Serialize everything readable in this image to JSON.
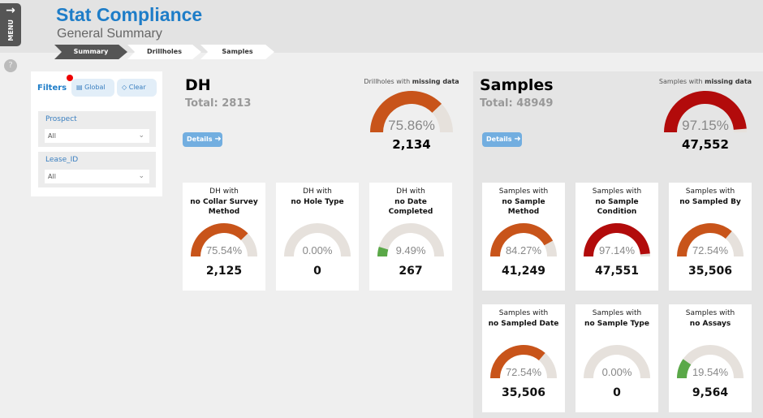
{
  "header": {
    "title": "Stat Compliance",
    "subtitle": "General Summary",
    "menu_label": "MENU",
    "menu_icon": "arrow-right-icon"
  },
  "breadcrumbs": [
    {
      "label": "Summary",
      "active": true
    },
    {
      "label": "Drillholes",
      "active": false
    },
    {
      "label": "Samples",
      "active": false
    }
  ],
  "help_icon": "question-circle-icon",
  "filters": {
    "title": "Filters",
    "global_label": "Global",
    "clear_label": "Clear",
    "fields": [
      {
        "label": "Prospect",
        "value": "All"
      },
      {
        "label": "Lease_ID",
        "value": "All"
      }
    ]
  },
  "colors": {
    "accent": "#1e7dc8",
    "orange": "#c8541a",
    "red": "#b20b0b",
    "green": "#5aa848",
    "track": "#e6e1dc"
  },
  "dh": {
    "title": "DH",
    "total": "Total: 2813",
    "details_label": "Details",
    "summary": {
      "label_pre": "Drillholes with ",
      "label_bold": "missing data",
      "pct": 75.86,
      "pct_text": "75.86%",
      "value": "2,134",
      "color": "#c8541a"
    },
    "cards": [
      {
        "t1": "DH with",
        "t2": "no Collar Survey Method",
        "pct": 75.54,
        "pct_text": "75.54%",
        "value": "2,125",
        "color": "#c8541a"
      },
      {
        "t1": "DH with",
        "t2": "no Hole Type",
        "pct": 0,
        "pct_text": "0.00%",
        "value": "0",
        "color": "#5aa848"
      },
      {
        "t1": "DH with",
        "t2": "no Date Completed",
        "pct": 9.49,
        "pct_text": "9.49%",
        "value": "267",
        "color": "#5aa848"
      }
    ]
  },
  "samples": {
    "title": "Samples",
    "total": "Total: 48949",
    "details_label": "Details",
    "summary": {
      "label_pre": "Samples with ",
      "label_bold": "missing data",
      "pct": 97.15,
      "pct_text": "97.15%",
      "value": "47,552",
      "color": "#b20b0b"
    },
    "cards": [
      {
        "t1": "Samples with",
        "t2": "no Sample Method",
        "pct": 84.27,
        "pct_text": "84.27%",
        "value": "41,249",
        "color": "#c8541a"
      },
      {
        "t1": "Samples with",
        "t2": "no Sample Condition",
        "pct": 97.14,
        "pct_text": "97.14%",
        "value": "47,551",
        "color": "#b20b0b"
      },
      {
        "t1": "Samples with",
        "t2": "no Sampled By",
        "pct": 72.54,
        "pct_text": "72.54%",
        "value": "35,506",
        "color": "#c8541a"
      },
      {
        "t1": "Samples with",
        "t2": "no Sampled Date",
        "pct": 72.54,
        "pct_text": "72.54%",
        "value": "35,506",
        "color": "#c8541a"
      },
      {
        "t1": "Samples with",
        "t2": "no Sample Type",
        "pct": 0,
        "pct_text": "0.00%",
        "value": "0",
        "color": "#5aa848"
      },
      {
        "t1": "Samples with",
        "t2": "no Assays",
        "pct": 19.54,
        "pct_text": "19.54%",
        "value": "9,564",
        "color": "#5aa848"
      }
    ]
  }
}
